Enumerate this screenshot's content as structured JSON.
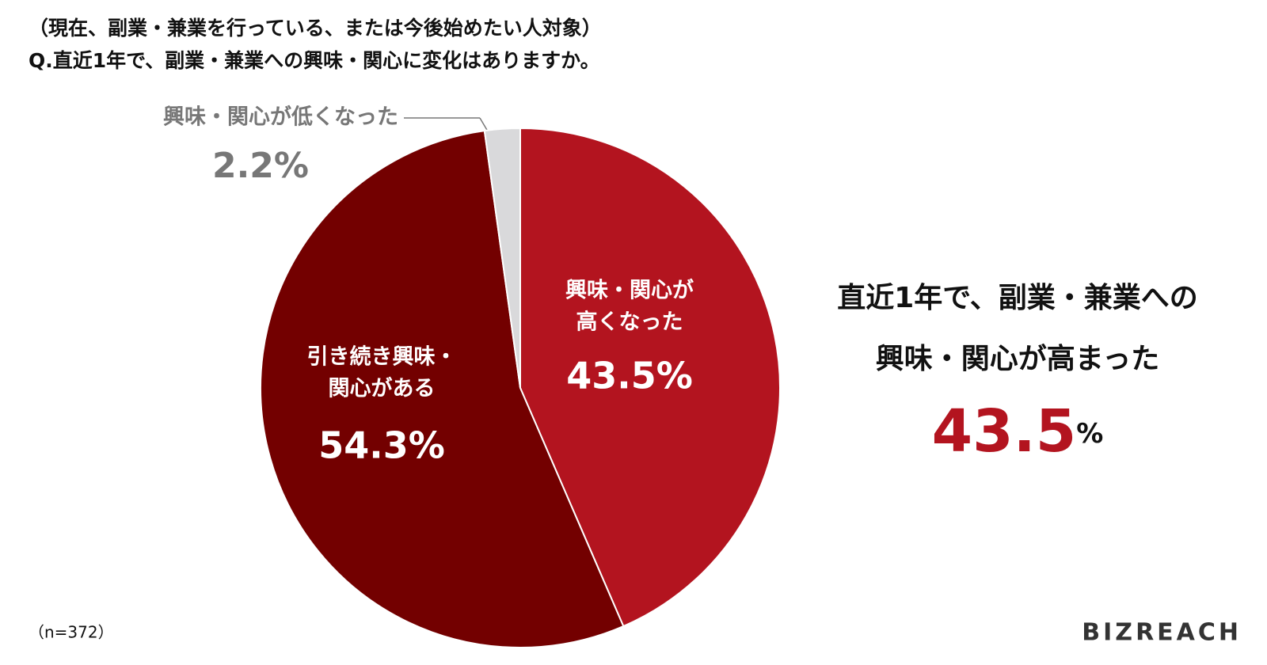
{
  "chart_data": {
    "type": "pie",
    "title_lines": [
      "（現在、副業・兼業を行っている、または今後始めたい人対象）",
      "Q.直近1年で、副業・兼業への興味・関心に変化はありますか。"
    ],
    "categories": [
      [
        "興味・関心が",
        "高くなった"
      ],
      [
        "引き続き興味・",
        "関心がある"
      ],
      [
        "興味・関心が低くなった"
      ]
    ],
    "values": [
      43.5,
      54.3,
      2.2
    ],
    "value_labels": [
      "43.5%",
      "54.3%",
      "2.2%"
    ],
    "colors": [
      "#b3141f",
      "#730000",
      "#d9d9db"
    ],
    "annotation": {
      "lines": [
        "直近1年で、副業・兼業への",
        "興味・関心が高まった"
      ],
      "value": "43.5",
      "unit": "%",
      "color": "#b3141f"
    },
    "note": "（n=372）",
    "logo": "BIZREACH"
  }
}
